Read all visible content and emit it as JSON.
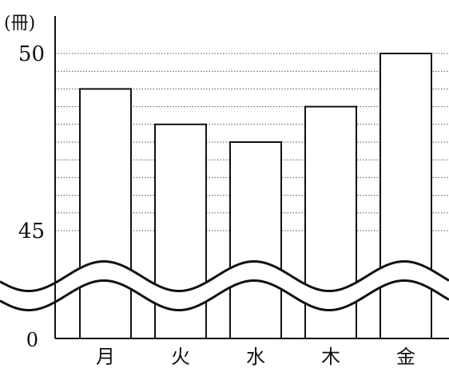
{
  "chart_data": {
    "type": "bar",
    "unit_label": "(冊)",
    "categories": [
      "月",
      "火",
      "水",
      "木",
      "金"
    ],
    "values": [
      49,
      48,
      47.5,
      48.5,
      50
    ],
    "y_ticks": [
      {
        "value": 45,
        "label": "45"
      },
      {
        "value": 50,
        "label": "50"
      }
    ],
    "origin_label": "0",
    "y_broken_axis": true,
    "visible_y_range": [
      45,
      50
    ],
    "grid_lines": [
      45,
      45.5,
      46,
      46.5,
      47,
      47.5,
      48,
      48.5,
      49,
      49.5,
      50
    ],
    "grid": "dotted horizontal",
    "bar_fill": "#ffffff",
    "bar_stroke": "#111111"
  }
}
